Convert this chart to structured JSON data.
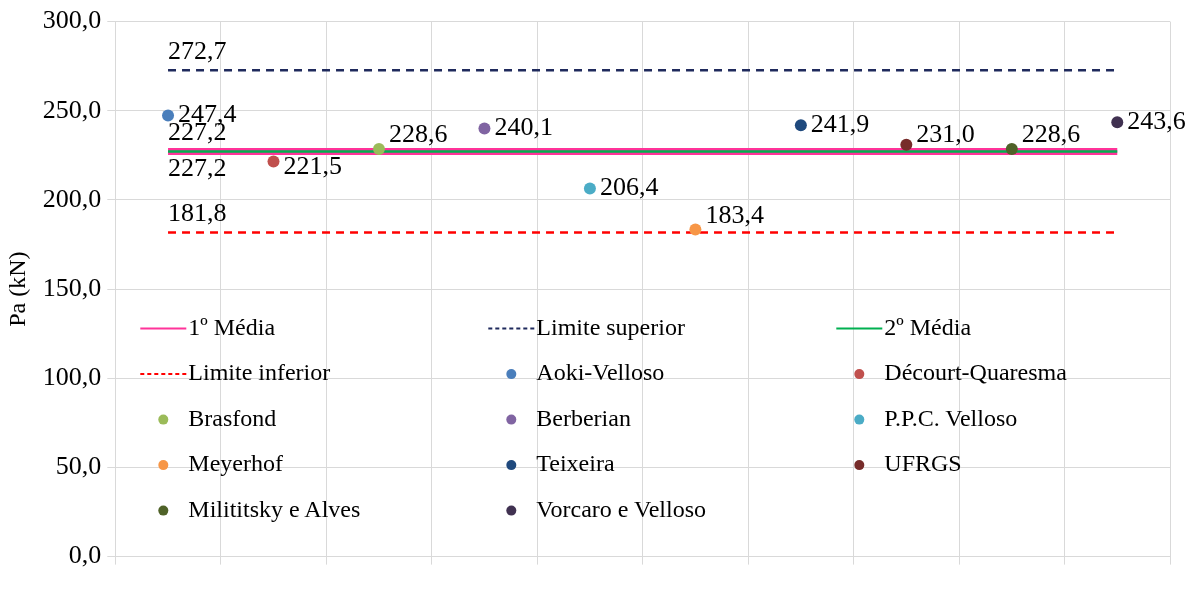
{
  "chart_data": {
    "type": "scatter",
    "ylabel": "Pa (kN)",
    "categories": [
      null,
      null,
      null,
      null,
      null,
      null,
      null,
      null,
      null,
      null
    ],
    "ylim": [
      0,
      300
    ],
    "yticks": [
      {
        "value": 0,
        "label": "0,0"
      },
      {
        "value": 50,
        "label": "50,0"
      },
      {
        "value": 100,
        "label": "100,0"
      },
      {
        "value": 150,
        "label": "150,0"
      },
      {
        "value": 200,
        "label": "200,0"
      },
      {
        "value": 250,
        "label": "250,0"
      },
      {
        "value": 300,
        "label": "300,0"
      }
    ],
    "grid": true,
    "legend": "bottom",
    "marker": "circle",
    "series": [
      {
        "name": "1º Média",
        "type": "line",
        "marker": "none",
        "line_style": "solid",
        "color": "#ff3399",
        "values": [
          227.2,
          227.2,
          227.2,
          227.2,
          227.2,
          227.2,
          227.2,
          227.2,
          227.2,
          227.2
        ],
        "value_labels": [
          "227,2",
          null,
          null,
          null,
          null,
          null,
          null,
          null,
          null,
          null
        ]
      },
      {
        "name": "Limite superior",
        "type": "line",
        "marker": "none",
        "line_style": "dashed",
        "color": "#1f2a5c",
        "values": [
          272.7,
          272.7,
          272.7,
          272.7,
          272.7,
          272.7,
          272.7,
          272.7,
          272.7,
          272.7
        ],
        "value_labels": [
          "272,7",
          null,
          null,
          null,
          null,
          null,
          null,
          null,
          null,
          null
        ]
      },
      {
        "name": "2º Média",
        "type": "line",
        "marker": "none",
        "line_style": "solid",
        "color": "#00b050",
        "values": [
          227.2,
          227.2,
          227.2,
          227.2,
          227.2,
          227.2,
          227.2,
          227.2,
          227.2,
          227.2
        ],
        "value_labels": [
          "227,2",
          null,
          null,
          null,
          null,
          null,
          null,
          null,
          null,
          null
        ]
      },
      {
        "name": "Limite inferior",
        "type": "line",
        "marker": "none",
        "line_style": "dashed",
        "color": "#ff0000",
        "values": [
          181.8,
          181.8,
          181.8,
          181.8,
          181.8,
          181.8,
          181.8,
          181.8,
          181.8,
          181.8
        ],
        "value_labels": [
          "181,8",
          null,
          null,
          null,
          null,
          null,
          null,
          null,
          null,
          null
        ]
      },
      {
        "name": "Aoki-Velloso",
        "color": "#4a7ebb",
        "values": [
          247.4,
          null,
          null,
          null,
          null,
          null,
          null,
          null,
          null,
          null
        ],
        "value_labels": [
          "247,4",
          null,
          null,
          null,
          null,
          null,
          null,
          null,
          null,
          null
        ]
      },
      {
        "name": "Décourt-Quaresma",
        "color": "#c0504d",
        "values": [
          null,
          221.5,
          null,
          null,
          null,
          null,
          null,
          null,
          null,
          null
        ],
        "value_labels": [
          null,
          "221,5",
          null,
          null,
          null,
          null,
          null,
          null,
          null,
          null
        ]
      },
      {
        "name": "Brasfond",
        "color": "#9bbb59",
        "values": [
          null,
          null,
          228.6,
          null,
          null,
          null,
          null,
          null,
          null,
          null
        ],
        "value_labels": [
          null,
          null,
          "228,6",
          null,
          null,
          null,
          null,
          null,
          null,
          null
        ]
      },
      {
        "name": "Berberian",
        "color": "#8064a2",
        "values": [
          null,
          null,
          null,
          240.1,
          null,
          null,
          null,
          null,
          null,
          null
        ],
        "value_labels": [
          null,
          null,
          null,
          "240,1",
          null,
          null,
          null,
          null,
          null,
          null
        ]
      },
      {
        "name": "P.P.C. Velloso",
        "color": "#4bacc6",
        "values": [
          null,
          null,
          null,
          null,
          206.4,
          null,
          null,
          null,
          null,
          null
        ],
        "value_labels": [
          null,
          null,
          null,
          null,
          "206,4",
          null,
          null,
          null,
          null,
          null
        ]
      },
      {
        "name": "Meyerhof",
        "color": "#f79646",
        "values": [
          null,
          null,
          null,
          null,
          null,
          183.4,
          null,
          null,
          null,
          null
        ],
        "value_labels": [
          null,
          null,
          null,
          null,
          null,
          "183,4",
          null,
          null,
          null,
          null
        ]
      },
      {
        "name": "Teixeira",
        "color": "#1f497d",
        "values": [
          null,
          null,
          null,
          null,
          null,
          null,
          241.9,
          null,
          null,
          null
        ],
        "value_labels": [
          null,
          null,
          null,
          null,
          null,
          null,
          "241,9",
          null,
          null,
          null
        ]
      },
      {
        "name": "UFRGS",
        "color": "#772c2a",
        "values": [
          null,
          null,
          null,
          null,
          null,
          null,
          null,
          231.0,
          null,
          null
        ],
        "value_labels": [
          null,
          null,
          null,
          null,
          null,
          null,
          null,
          "231,0",
          null,
          null
        ]
      },
      {
        "name": "Milititsky e Alves",
        "color": "#4f6228",
        "values": [
          null,
          null,
          null,
          null,
          null,
          null,
          null,
          null,
          228.6,
          null
        ],
        "value_labels": [
          null,
          null,
          null,
          null,
          null,
          null,
          null,
          null,
          "228,6",
          null
        ]
      },
      {
        "name": "Vorcaro e Velloso",
        "color": "#403151",
        "values": [
          null,
          null,
          null,
          null,
          null,
          null,
          null,
          null,
          null,
          243.6
        ],
        "value_labels": [
          null,
          null,
          null,
          null,
          null,
          null,
          null,
          null,
          null,
          "243,6"
        ]
      }
    ]
  }
}
